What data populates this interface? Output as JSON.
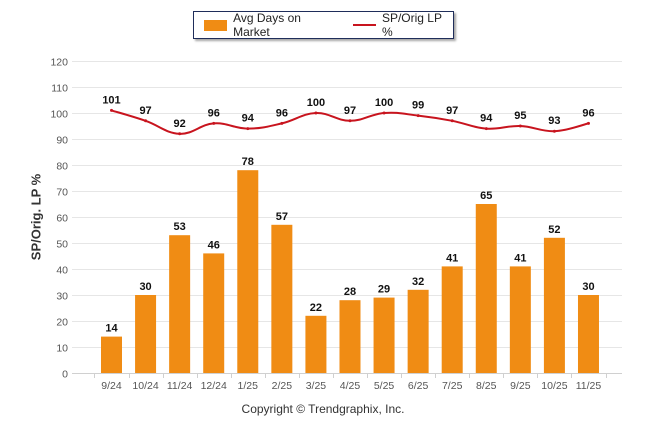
{
  "chart_data": {
    "type": "bar",
    "categories": [
      "9/24",
      "10/24",
      "11/24",
      "12/24",
      "1/25",
      "2/25",
      "3/25",
      "4/25",
      "5/25",
      "6/25",
      "7/25",
      "8/25",
      "9/25",
      "10/25",
      "11/25"
    ],
    "series": [
      {
        "name": "Avg Days on Market",
        "type": "bar",
        "color": "#f08c14",
        "values": [
          14,
          30,
          53,
          46,
          78,
          57,
          22,
          28,
          29,
          32,
          41,
          65,
          41,
          52,
          30
        ]
      },
      {
        "name": "SP/Orig LP %",
        "type": "line",
        "color": "#c8141e",
        "values": [
          101,
          97,
          92,
          96,
          94,
          96,
          100,
          97,
          100,
          99,
          97,
          94,
          95,
          93,
          96
        ]
      }
    ],
    "ylabel": "SP/Orig. LP %",
    "ylim": [
      0,
      120
    ],
    "yticks": [
      0,
      10,
      20,
      30,
      40,
      50,
      60,
      70,
      80,
      90,
      100,
      110,
      120
    ],
    "grid": true,
    "legend_position": "top-center"
  },
  "legend": {
    "bar_label": "Avg Days on Market",
    "line_label": "SP/Orig LP %"
  },
  "footer": {
    "copyright": "Copyright © Trendgraphix, Inc."
  }
}
